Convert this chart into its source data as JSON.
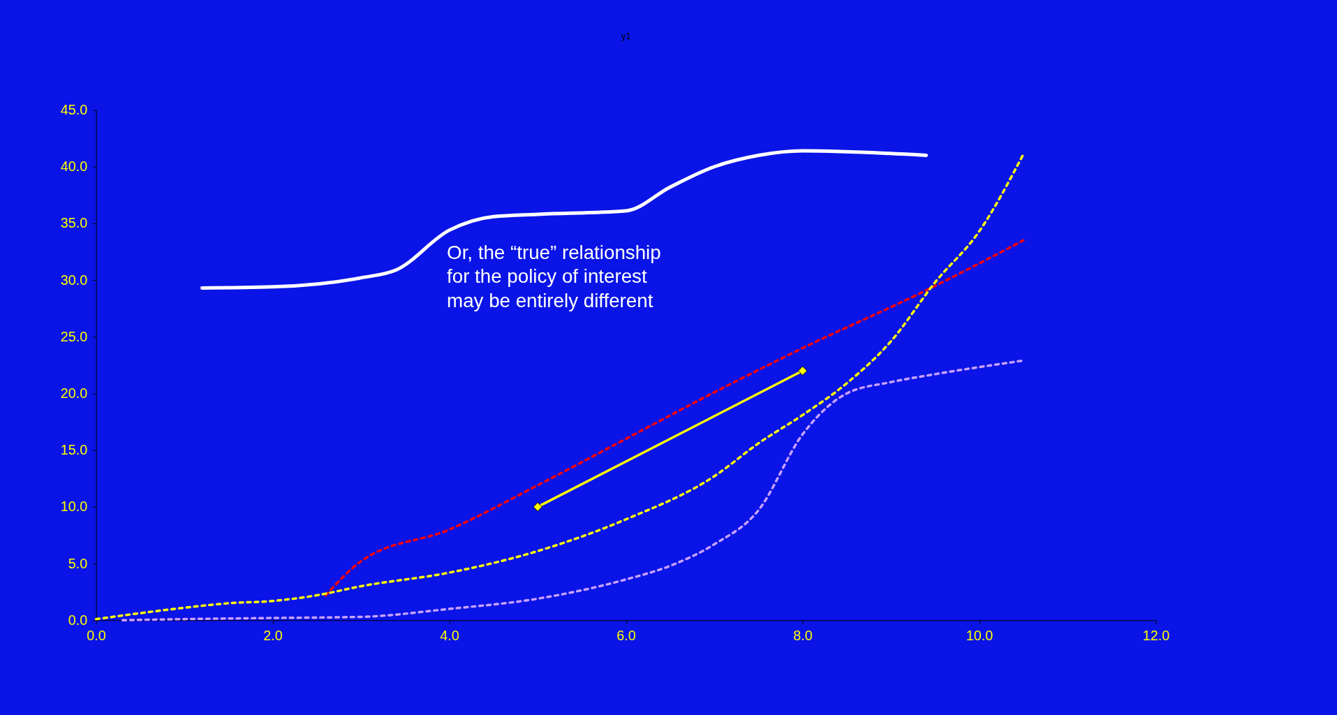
{
  "chart_data": {
    "type": "line",
    "title": "y1",
    "xlim": [
      0,
      12
    ],
    "xticks": [
      {
        "value": 0,
        "label": "0.0"
      },
      {
        "value": 2,
        "label": "2.0"
      },
      {
        "value": 4,
        "label": "4.0"
      },
      {
        "value": 6,
        "label": "6.0"
      },
      {
        "value": 8,
        "label": "8.0"
      },
      {
        "value": 10,
        "label": "10.0"
      },
      {
        "value": 12,
        "label": "12.0"
      }
    ],
    "ylim": [
      0,
      45
    ],
    "yticks": [
      {
        "value": 0,
        "label": "0.0"
      },
      {
        "value": 5,
        "label": "5.0"
      },
      {
        "value": 10,
        "label": "10.0"
      },
      {
        "value": 15,
        "label": "15.0"
      },
      {
        "value": 20,
        "label": "20.0"
      },
      {
        "value": 25,
        "label": "25.0"
      },
      {
        "value": 30,
        "label": "30.0"
      },
      {
        "value": 35,
        "label": "35.0"
      },
      {
        "value": 40,
        "label": "40.0"
      },
      {
        "value": 45,
        "label": "45.0"
      }
    ],
    "grid": false,
    "series": [
      {
        "color": "#ffffff",
        "line_style": "solid",
        "marker": "none",
        "x": [
          1.2,
          2.0,
          3.0,
          3.4,
          4.0,
          4.5,
          5.0,
          6.0,
          6.5,
          7.0,
          7.5,
          8.0,
          9.4
        ],
        "values": [
          29.3,
          29.4,
          30.2,
          30.9,
          34.4,
          35.6,
          35.8,
          36.1,
          38.2,
          40.0,
          41.0,
          41.4,
          41.0
        ]
      },
      {
        "color": "#ff0000",
        "line_style": "dashed",
        "marker": "none",
        "x": [
          2.6,
          3.0,
          4.0,
          5.0,
          6.0,
          7.0,
          8.0,
          9.4,
          10.5
        ],
        "values": [
          2.2,
          5.2,
          8.0,
          11.9,
          16.0,
          20.1,
          24.0,
          29.1,
          33.5
        ]
      },
      {
        "color": "#ffff00",
        "line_style": "dashed",
        "marker": "none",
        "x": [
          0,
          1,
          1.5,
          2,
          2.5,
          3,
          4,
          5,
          6,
          7,
          7.5,
          8,
          8.5,
          9,
          9.5,
          10,
          10.5
        ],
        "values": [
          0.1,
          1.1,
          1.5,
          1.7,
          2.2,
          3.0,
          4.2,
          6.1,
          8.9,
          12.7,
          15.6,
          18.1,
          20.9,
          24.6,
          29.8,
          34.3,
          41.1
        ]
      },
      {
        "color": "#c8a0ff",
        "line_style": "dashed",
        "marker": "none",
        "x": [
          0.3,
          1,
          2,
          3,
          4,
          5,
          6,
          6.5,
          7,
          7.5,
          8,
          8.5,
          9,
          9.5,
          10.5
        ],
        "values": [
          0.0,
          0.1,
          0.2,
          0.3,
          1.0,
          1.9,
          3.6,
          4.8,
          6.7,
          9.7,
          16.4,
          20.0,
          21.0,
          21.7,
          22.9
        ]
      },
      {
        "color": "#ffff00",
        "line_style": "solid",
        "marker": "diamond",
        "x": [
          5,
          8
        ],
        "values": [
          10,
          22
        ]
      }
    ],
    "annotations": [
      "Or, the “true” relationship\nfor the policy of interest\nmay be entirely different"
    ]
  }
}
